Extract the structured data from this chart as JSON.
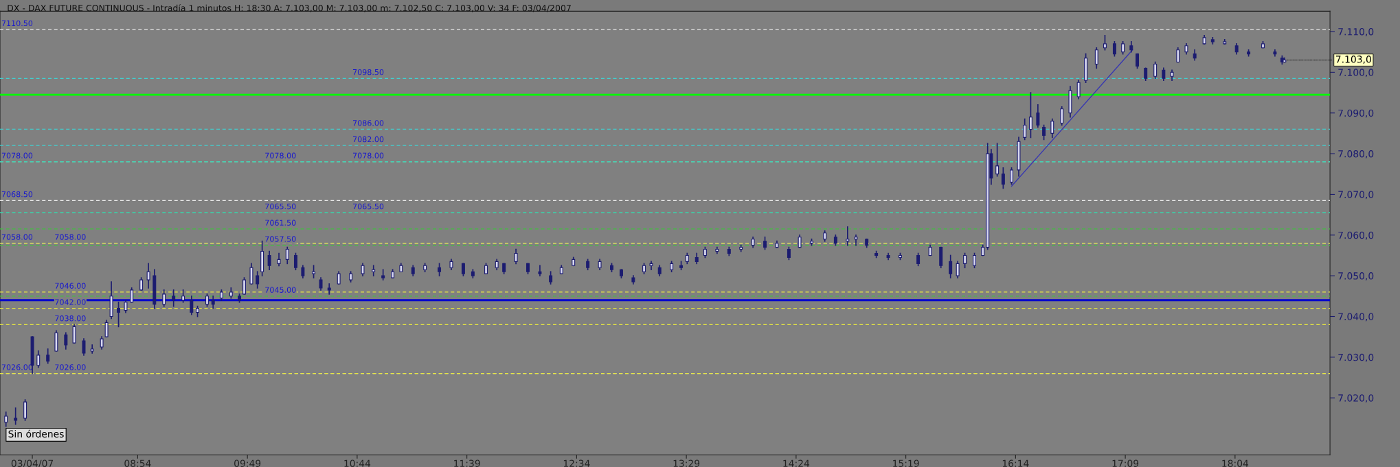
{
  "chart_data": {
    "type": "candlestick",
    "title": "DX - DAX FUTURE CONTINUOUS - Intradía 1 minutos H: 18:30 A: 7.103,00 M: 7.103,00 m: 7.102,50 C: 7.103,00 V: 34 F: 03/04/2007",
    "x": [
      7.8,
      7.88,
      7.96,
      8.02,
      8.07,
      8.15,
      8.22,
      8.3,
      8.37,
      8.45,
      8.52,
      8.6,
      8.64,
      8.68,
      8.74,
      8.8,
      8.85,
      8.93,
      8.99,
      9.04,
      9.12,
      9.2,
      9.28,
      9.35,
      9.4,
      9.48,
      9.53,
      9.6,
      9.68,
      9.75,
      9.79,
      9.85,
      9.9,
      9.94,
      10.0,
      10.08,
      10.15,
      10.22,
      10.28,
      10.37,
      10.43,
      10.5,
      10.58,
      10.68,
      10.78,
      10.87,
      10.95,
      11.03,
      11.1,
      11.2,
      11.3,
      11.42,
      11.52,
      11.62,
      11.7,
      11.81,
      11.9,
      11.96,
      12.06,
      12.16,
      12.26,
      12.35,
      12.44,
      12.54,
      12.66,
      12.76,
      12.86,
      12.94,
      13.04,
      13.13,
      13.19,
      13.26,
      13.36,
      13.44,
      13.49,
      13.57,
      13.64,
      13.74,
      13.84,
      13.94,
      14.04,
      14.14,
      14.24,
      14.34,
      14.43,
      14.53,
      14.64,
      14.73,
      14.83,
      14.9,
      14.99,
      15.07,
      15.17,
      15.27,
      15.42,
      15.52,
      15.61,
      15.69,
      15.75,
      15.81,
      15.89,
      15.96,
      16.0,
      16.03,
      16.08,
      16.13,
      16.2,
      16.26,
      16.31,
      16.36,
      16.42,
      16.47,
      16.54,
      16.62,
      16.69,
      16.76,
      16.82,
      16.91,
      16.98,
      17.06,
      17.13,
      17.2,
      17.25,
      17.32,
      17.4,
      17.47,
      17.54,
      17.59,
      17.66,
      17.73,
      17.81,
      17.88,
      17.98,
      18.08,
      18.18,
      18.3,
      18.4,
      18.46,
      18.48
    ],
    "ohlc": [
      [
        7014.0,
        7016.5,
        7013.0,
        7015.5
      ],
      [
        7015.0,
        7017.5,
        7013.5,
        7014.5
      ],
      [
        7015.0,
        7019.5,
        7014.5,
        7019.0
      ],
      [
        7035.0,
        7035.0,
        7026.0,
        7028.0
      ],
      [
        7028.0,
        7031.5,
        7027.5,
        7030.5
      ],
      [
        7030.5,
        7032.0,
        7028.5,
        7029.0
      ],
      [
        7031.5,
        7036.5,
        7031.5,
        7036.0
      ],
      [
        7035.5,
        7036.0,
        7032.0,
        7033.0
      ],
      [
        7033.5,
        7038.0,
        7033.5,
        7037.5
      ],
      [
        7034.0,
        7034.5,
        7030.5,
        7031.0
      ],
      [
        7031.5,
        7033.0,
        7031.0,
        7032.0
      ],
      [
        7032.5,
        7035.0,
        7032.0,
        7034.5
      ],
      [
        7035.0,
        7039.0,
        7035.0,
        7038.5
      ],
      [
        7040.0,
        7048.5,
        7039.5,
        7045.0
      ],
      [
        7042.0,
        7043.5,
        7037.5,
        7041.0
      ],
      [
        7041.5,
        7044.0,
        7041.0,
        7043.5
      ],
      [
        7043.5,
        7047.0,
        7043.5,
        7046.5
      ],
      [
        7046.5,
        7049.5,
        7046.5,
        7049.0
      ],
      [
        7049.0,
        7053.0,
        7047.0,
        7051.0
      ],
      [
        7050.0,
        7051.5,
        7042.0,
        7043.0
      ],
      [
        7043.0,
        7046.5,
        7042.5,
        7045.5
      ],
      [
        7045.0,
        7046.5,
        7042.5,
        7044.0
      ],
      [
        7044.0,
        7046.5,
        7043.5,
        7045.0
      ],
      [
        7044.0,
        7045.0,
        7040.5,
        7041.0
      ],
      [
        7041.0,
        7042.5,
        7040.0,
        7042.0
      ],
      [
        7043.0,
        7045.5,
        7042.5,
        7045.0
      ],
      [
        7044.0,
        7045.0,
        7042.0,
        7043.0
      ],
      [
        7044.5,
        7046.5,
        7044.0,
        7046.0
      ],
      [
        7045.0,
        7047.0,
        7044.5,
        7046.0
      ],
      [
        7045.0,
        7045.5,
        7043.5,
        7044.0
      ],
      [
        7045.5,
        7049.5,
        7045.5,
        7049.0
      ],
      [
        7048.0,
        7053.0,
        7048.0,
        7052.0
      ],
      [
        7050.0,
        7051.0,
        7047.0,
        7048.0
      ],
      [
        7051.0,
        7058.5,
        7050.0,
        7056.0
      ],
      [
        7055.0,
        7056.0,
        7051.5,
        7052.5
      ],
      [
        7053.0,
        7055.5,
        7052.5,
        7054.0
      ],
      [
        7054.0,
        7057.0,
        7053.0,
        7056.5
      ],
      [
        7055.0,
        7055.5,
        7051.5,
        7052.0
      ],
      [
        7052.0,
        7052.5,
        7049.5,
        7050.0
      ],
      [
        7050.5,
        7052.5,
        7049.5,
        7051.0
      ],
      [
        7049.0,
        7049.5,
        7046.5,
        7047.0
      ],
      [
        7047.0,
        7048.0,
        7045.5,
        7046.5
      ],
      [
        7048.0,
        7051.0,
        7048.0,
        7050.5
      ],
      [
        7049.0,
        7051.0,
        7048.5,
        7050.5
      ],
      [
        7050.5,
        7053.0,
        7050.0,
        7052.5
      ],
      [
        7051.0,
        7052.5,
        7050.0,
        7051.5
      ],
      [
        7050.0,
        7051.5,
        7049.0,
        7049.5
      ],
      [
        7049.5,
        7051.5,
        7049.5,
        7051.0
      ],
      [
        7051.0,
        7053.0,
        7051.0,
        7052.5
      ],
      [
        7052.0,
        7052.5,
        7050.0,
        7050.5
      ],
      [
        7051.5,
        7053.0,
        7051.0,
        7052.5
      ],
      [
        7052.0,
        7053.0,
        7050.0,
        7051.0
      ],
      [
        7052.0,
        7054.0,
        7051.5,
        7053.5
      ],
      [
        7053.0,
        7053.0,
        7050.0,
        7050.5
      ],
      [
        7051.0,
        7051.5,
        7049.5,
        7050.0
      ],
      [
        7050.5,
        7053.0,
        7050.5,
        7052.5
      ],
      [
        7052.0,
        7054.0,
        7051.5,
        7053.5
      ],
      [
        7053.0,
        7053.0,
        7050.5,
        7051.0
      ],
      [
        7053.5,
        7056.5,
        7053.0,
        7055.5
      ],
      [
        7053.0,
        7053.0,
        7050.5,
        7051.0
      ],
      [
        7051.0,
        7052.5,
        7050.0,
        7050.5
      ],
      [
        7050.0,
        7051.0,
        7048.0,
        7048.5
      ],
      [
        7050.5,
        7052.5,
        7050.5,
        7052.0
      ],
      [
        7052.5,
        7054.5,
        7052.5,
        7054.0
      ],
      [
        7053.5,
        7054.0,
        7051.5,
        7052.0
      ],
      [
        7052.0,
        7054.0,
        7051.5,
        7053.5
      ],
      [
        7052.5,
        7053.0,
        7051.0,
        7051.5
      ],
      [
        7051.5,
        7051.5,
        7049.5,
        7050.0
      ],
      [
        7049.5,
        7050.0,
        7048.0,
        7048.5
      ],
      [
        7051.0,
        7053.0,
        7050.5,
        7052.5
      ],
      [
        7052.5,
        7053.5,
        7051.5,
        7053.0
      ],
      [
        7052.0,
        7052.5,
        7050.0,
        7050.5
      ],
      [
        7051.5,
        7053.5,
        7051.0,
        7053.0
      ],
      [
        7052.5,
        7053.5,
        7051.5,
        7052.0
      ],
      [
        7053.5,
        7055.5,
        7053.0,
        7055.0
      ],
      [
        7054.5,
        7055.5,
        7053.0,
        7053.5
      ],
      [
        7055.0,
        7057.0,
        7054.5,
        7056.5
      ],
      [
        7056.0,
        7057.0,
        7055.5,
        7056.5
      ],
      [
        7056.5,
        7057.0,
        7055.0,
        7055.5
      ],
      [
        7056.5,
        7057.5,
        7056.0,
        7057.0
      ],
      [
        7057.5,
        7059.5,
        7057.0,
        7059.0
      ],
      [
        7058.5,
        7059.5,
        7056.5,
        7057.0
      ],
      [
        7057.0,
        7058.5,
        7057.0,
        7058.0
      ],
      [
        7056.5,
        7057.0,
        7054.0,
        7054.5
      ],
      [
        7057.0,
        7060.0,
        7057.0,
        7059.5
      ],
      [
        7058.0,
        7059.0,
        7057.5,
        7058.5
      ],
      [
        7059.0,
        7061.0,
        7058.5,
        7060.5
      ],
      [
        7059.5,
        7060.0,
        7057.5,
        7058.0
      ],
      [
        7058.5,
        7062.0,
        7057.5,
        7059.0
      ],
      [
        7059.0,
        7060.0,
        7057.5,
        7059.5
      ],
      [
        7059.0,
        7059.0,
        7057.0,
        7057.5
      ],
      [
        7055.5,
        7056.0,
        7054.5,
        7055.0
      ],
      [
        7055.0,
        7055.5,
        7054.0,
        7054.5
      ],
      [
        7054.5,
        7055.5,
        7054.0,
        7055.0
      ],
      [
        7055.0,
        7055.5,
        7052.5,
        7053.0
      ],
      [
        7055.0,
        7057.5,
        7055.0,
        7057.0
      ],
      [
        7057.0,
        7057.0,
        7052.0,
        7052.5
      ],
      [
        7053.5,
        7055.0,
        7049.5,
        7050.5
      ],
      [
        7050.0,
        7053.5,
        7049.5,
        7053.0
      ],
      [
        7053.0,
        7055.5,
        7052.0,
        7055.0
      ],
      [
        7052.5,
        7055.5,
        7052.0,
        7055.0
      ],
      [
        7055.0,
        7057.5,
        7055.0,
        7057.0
      ],
      [
        7057.0,
        7082.5,
        7056.5,
        7080.0
      ],
      [
        7080.0,
        7081.0,
        7072.5,
        7074.0
      ],
      [
        7075.0,
        7082.5,
        7074.5,
        7077.0
      ],
      [
        7075.0,
        7076.5,
        7071.5,
        7072.5
      ],
      [
        7073.0,
        7076.5,
        7072.5,
        7076.0
      ],
      [
        7076.0,
        7084.0,
        7074.5,
        7083.0
      ],
      [
        7084.0,
        7088.5,
        7083.5,
        7087.0
      ],
      [
        7086.0,
        7095.0,
        7084.0,
        7089.0
      ],
      [
        7090.0,
        7092.0,
        7086.5,
        7087.0
      ],
      [
        7086.5,
        7087.0,
        7083.5,
        7084.5
      ],
      [
        7085.0,
        7088.5,
        7084.0,
        7088.0
      ],
      [
        7087.5,
        7091.5,
        7087.0,
        7091.0
      ],
      [
        7090.0,
        7096.5,
        7089.0,
        7095.5
      ],
      [
        7094.0,
        7098.0,
        7093.5,
        7097.5
      ],
      [
        7098.0,
        7104.5,
        7097.5,
        7103.5
      ],
      [
        7102.0,
        7106.0,
        7101.0,
        7105.5
      ],
      [
        7106.0,
        7109.0,
        7105.5,
        7107.0
      ],
      [
        7107.0,
        7107.5,
        7104.0,
        7104.5
      ],
      [
        7105.0,
        7107.5,
        7104.5,
        7107.0
      ],
      [
        7106.5,
        7107.5,
        7105.0,
        7105.5
      ],
      [
        7104.5,
        7104.5,
        7101.0,
        7101.5
      ],
      [
        7101.0,
        7101.0,
        7098.0,
        7098.5
      ],
      [
        7099.0,
        7102.5,
        7098.5,
        7102.0
      ],
      [
        7100.5,
        7101.0,
        7098.0,
        7098.5
      ],
      [
        7099.0,
        7100.5,
        7098.0,
        7100.0
      ],
      [
        7102.5,
        7106.0,
        7102.5,
        7105.5
      ],
      [
        7105.0,
        7107.0,
        7104.5,
        7106.5
      ],
      [
        7104.5,
        7105.5,
        7103.0,
        7103.5
      ],
      [
        7107.0,
        7109.0,
        7107.0,
        7108.5
      ],
      [
        7108.0,
        7108.5,
        7107.0,
        7107.5
      ],
      [
        7107.0,
        7108.0,
        7107.0,
        7107.5
      ],
      [
        7106.5,
        7107.0,
        7104.5,
        7105.0
      ],
      [
        7105.0,
        7105.5,
        7104.0,
        7104.5
      ],
      [
        7106.0,
        7107.5,
        7106.0,
        7107.0
      ],
      [
        7105.0,
        7105.5,
        7104.0,
        7104.5
      ],
      [
        7103.5,
        7104.0,
        7102.0,
        7102.5
      ],
      [
        7102.5,
        7103.5,
        7102.5,
        7103.0
      ]
    ],
    "color": "#1c1c70",
    "series": [
      {
        "type": "line",
        "x": [
          16.2,
          17.21
        ],
        "values": [
          7072,
          7105.5
        ],
        "color": "#3838b0"
      }
    ],
    "xlim": [
      7.75,
      18.86
    ],
    "xticks": [
      {
        "value": 8.02,
        "label": "03/04/07"
      },
      {
        "value": 8.9,
        "label": "08:54"
      },
      {
        "value": 9.8167,
        "label": "09:49"
      },
      {
        "value": 10.7333,
        "label": "10:44"
      },
      {
        "value": 11.65,
        "label": "11:39"
      },
      {
        "value": 12.5667,
        "label": "12:34"
      },
      {
        "value": 13.4833,
        "label": "13:29"
      },
      {
        "value": 14.4,
        "label": "14:24"
      },
      {
        "value": 15.3167,
        "label": "15:19"
      },
      {
        "value": 16.2333,
        "label": "16:14"
      },
      {
        "value": 17.15,
        "label": "17:09"
      },
      {
        "value": 18.0667,
        "label": "18:04"
      }
    ],
    "ylim": [
      7006,
      7115
    ],
    "yticks": [
      {
        "value": 7020,
        "label": "7.020,0"
      },
      {
        "value": 7030,
        "label": "7.030,0"
      },
      {
        "value": 7040,
        "label": "7.040,0"
      },
      {
        "value": 7050,
        "label": "7.050,0"
      },
      {
        "value": 7060,
        "label": "7.060,0"
      },
      {
        "value": 7070,
        "label": "7.070,0"
      },
      {
        "value": 7080,
        "label": "7.080,0"
      },
      {
        "value": 7090,
        "label": "7.090,0"
      },
      {
        "value": 7100,
        "label": "7.100,0"
      },
      {
        "value": 7110,
        "label": "7.110,0"
      }
    ],
    "ref_lines": [
      {
        "axis": "y",
        "value": 7094.5,
        "color": "#00ff00",
        "line_style": "solid"
      },
      {
        "axis": "y",
        "value": 7044,
        "color": "#0000cc",
        "line_style": "solid"
      },
      {
        "axis": "y",
        "value": 7110.5,
        "label": "7110.50",
        "color": "#e8e8e8",
        "line_style": "dashed"
      },
      {
        "axis": "y",
        "value": 7078,
        "label": "7078.00",
        "color": "#e8e8e8",
        "line_style": "dashed"
      },
      {
        "axis": "y",
        "value": 7068.5,
        "label": "7068.50",
        "color": "#e8e8e8",
        "line_style": "dashed"
      },
      {
        "axis": "y",
        "value": 7058,
        "label": "7058.00",
        "color": "#e8e8e8",
        "line_style": "dashed"
      },
      {
        "axis": "y",
        "value": 7026,
        "label": "7026.00",
        "color": "#e8e8e8",
        "line_style": "dashed"
      },
      {
        "axis": "y",
        "value": 7058,
        "label": "7058.00",
        "color": "#e6e640",
        "line_style": "dashed"
      },
      {
        "axis": "y",
        "value": 7046,
        "label": "7046.00",
        "color": "#e6e640",
        "line_style": "dashed"
      },
      {
        "axis": "y",
        "value": 7042,
        "label": "7042.00",
        "color": "#e6e640",
        "line_style": "dashed"
      },
      {
        "axis": "y",
        "value": 7038,
        "label": "7038.00",
        "color": "#e6e640",
        "line_style": "dashed"
      },
      {
        "axis": "y",
        "value": 7026,
        "label": "7026.00",
        "color": "#e6e640",
        "line_style": "dashed"
      },
      {
        "axis": "y",
        "value": 7078,
        "label": "7078.00",
        "color": "#40c040",
        "line_style": "dashed"
      },
      {
        "axis": "y",
        "value": 7065.5,
        "label": "7065.50",
        "color": "#40c040",
        "line_style": "dashed"
      },
      {
        "axis": "y",
        "value": 7061.5,
        "label": "7061.50",
        "color": "#40c040",
        "line_style": "dashed"
      },
      {
        "axis": "y",
        "value": 7057.5,
        "label": "7057.50",
        "color": "#40c040",
        "line_style": "dashed"
      },
      {
        "axis": "y",
        "value": 7045,
        "label": "7045.00",
        "color": "#40c040",
        "line_style": "dashed"
      },
      {
        "axis": "y",
        "value": 7098.5,
        "label": "7098.50",
        "color": "#40d0d0",
        "line_style": "dashed"
      },
      {
        "axis": "y",
        "value": 7086,
        "label": "7086.00",
        "color": "#40d0d0",
        "line_style": "dashed"
      },
      {
        "axis": "y",
        "value": 7082,
        "label": "7082.00",
        "color": "#40d0d0",
        "line_style": "dashed"
      },
      {
        "axis": "y",
        "value": 7078,
        "label": "7078.00",
        "color": "#40d0d0",
        "line_style": "dashed"
      },
      {
        "axis": "y",
        "value": 7065.5,
        "label": "7065.50",
        "color": "#40d0d0",
        "line_style": "dashed"
      }
    ],
    "annotations": [
      {
        "text": "7.103,0",
        "x": 18.48,
        "y": 7103
      },
      "Sin órdenes"
    ],
    "grid": false,
    "legend": false
  }
}
